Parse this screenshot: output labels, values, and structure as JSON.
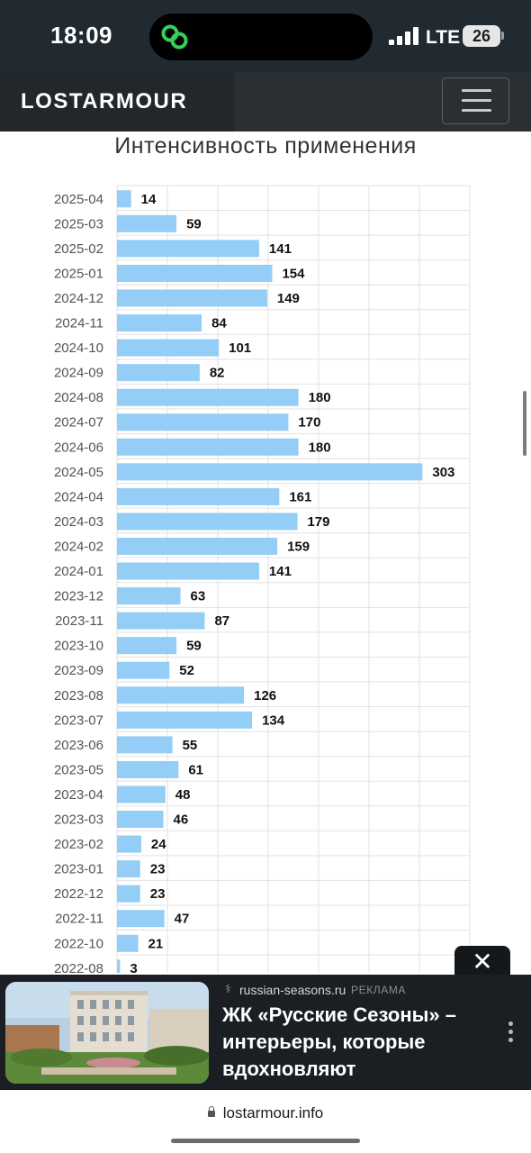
{
  "status_bar": {
    "time": "18:09",
    "network": "LTE",
    "battery": "26",
    "island_icon": "link-chain-icon"
  },
  "header": {
    "brand": "LOSTARMOUR",
    "menu_icon": "hamburger-menu-icon"
  },
  "chart_data": {
    "type": "bar",
    "orientation": "horizontal",
    "title": "Интенсивность применения",
    "categories": [
      "2025-04",
      "2025-03",
      "2025-02",
      "2025-01",
      "2024-12",
      "2024-11",
      "2024-10",
      "2024-09",
      "2024-08",
      "2024-07",
      "2024-06",
      "2024-05",
      "2024-04",
      "2024-03",
      "2024-02",
      "2024-01",
      "2023-12",
      "2023-11",
      "2023-10",
      "2023-09",
      "2023-08",
      "2023-07",
      "2023-06",
      "2023-05",
      "2023-04",
      "2023-03",
      "2023-02",
      "2023-01",
      "2022-12",
      "2022-11",
      "2022-10",
      "2022-08"
    ],
    "values": [
      14,
      59,
      141,
      154,
      149,
      84,
      101,
      82,
      180,
      170,
      180,
      303,
      161,
      179,
      159,
      141,
      63,
      87,
      59,
      52,
      126,
      134,
      55,
      61,
      48,
      46,
      24,
      23,
      23,
      47,
      21,
      3
    ],
    "xlim": [
      0,
      350
    ],
    "grid": true,
    "colors": {
      "bar": "#94cdf5"
    }
  },
  "ad": {
    "close_icon": "close-icon",
    "source": "russian-seasons.ru",
    "tag": "РЕКЛАМА",
    "headline": "ЖК «Русские Сезоны» – интерьеры, которые вдохновляют",
    "more_icon": "more-vertical-icon"
  },
  "url_bar": {
    "url": "lostarmour.info",
    "lock_icon": "lock-icon"
  }
}
